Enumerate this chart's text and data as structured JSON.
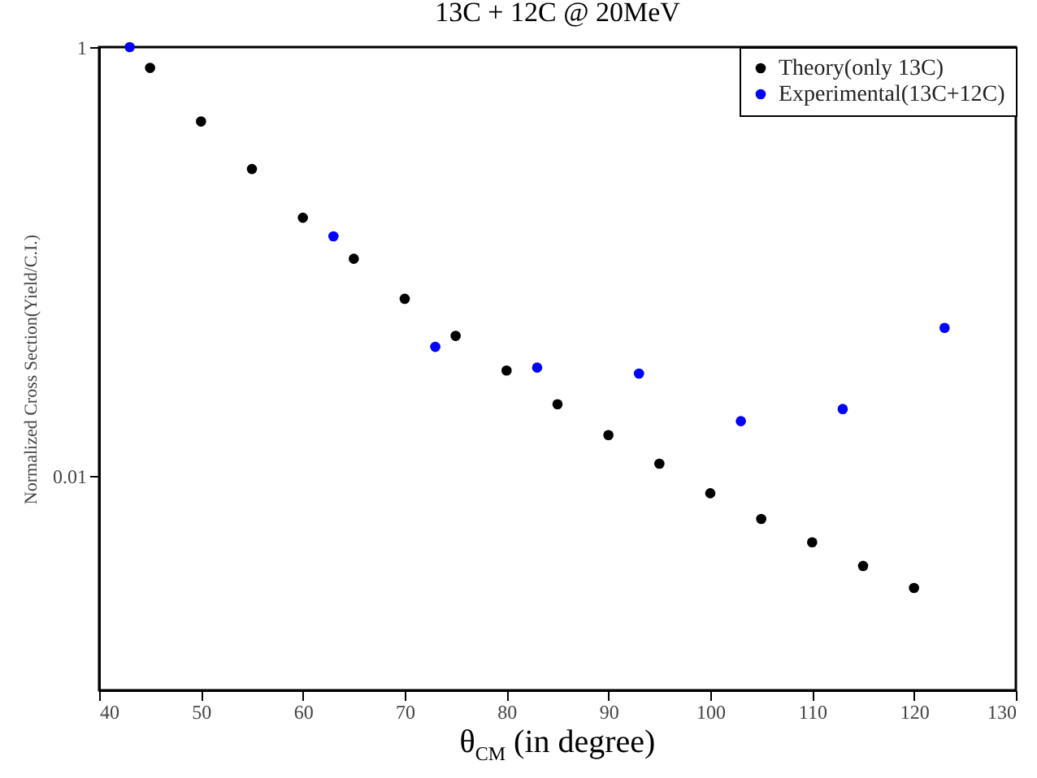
{
  "chart_data": {
    "type": "scatter",
    "title": "13C + 12C @ 20MeV",
    "xlabel": "θ$_{CM}$  (in degree)",
    "ylabel": "Normalized Cross Section(Yield/C.I.)",
    "xlim": [
      40,
      130
    ],
    "xticks": [
      40,
      50,
      60,
      70,
      80,
      90,
      100,
      110,
      120,
      130
    ],
    "ylim": [
      0.001,
      1
    ],
    "yticks": [
      1,
      0.01
    ],
    "log": "y",
    "grid": false,
    "legend": "top right",
    "marker": "circle",
    "series": [
      {
        "name": "Theory(only 13C)",
        "color": "#000000",
        "x": [
          45,
          50,
          55,
          60,
          65,
          70,
          75,
          80,
          85,
          90,
          95,
          100,
          105,
          110,
          115,
          120
        ],
        "values": [
          0.8,
          0.45,
          0.27,
          0.16,
          0.103,
          0.067,
          0.045,
          0.031,
          0.0216,
          0.0155,
          0.0114,
          0.0083,
          0.0063,
          0.0049,
          0.0038,
          0.003
        ]
      },
      {
        "name": "Experimental(13C+12C)",
        "color": "#0000ff",
        "x": [
          43,
          63,
          73,
          83,
          93,
          103,
          113,
          123
        ],
        "values": [
          1.0,
          0.131,
          0.04,
          0.032,
          0.03,
          0.018,
          0.0205,
          0.049
        ]
      }
    ]
  }
}
